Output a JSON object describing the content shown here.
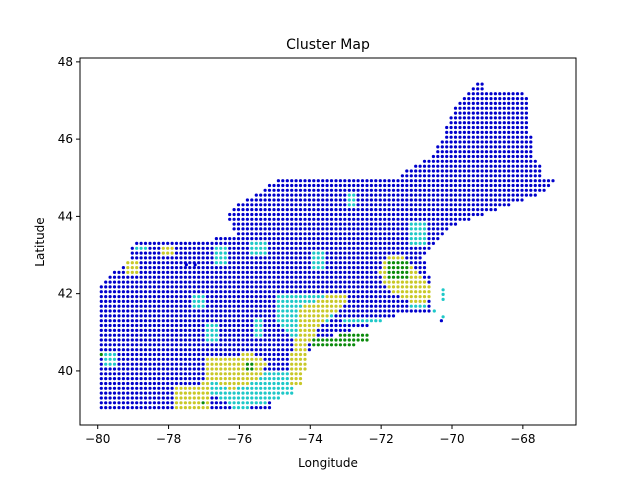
{
  "chart_data": {
    "type": "scatter",
    "title": "Cluster Map",
    "xlabel": "Longitude",
    "ylabel": "Latitude",
    "xlim": [
      -80.5,
      -66.5
    ],
    "ylim": [
      38.6,
      48.1
    ],
    "xticks": [
      -80,
      -78,
      -76,
      -74,
      -72,
      -70,
      -68
    ],
    "yticks": [
      40,
      42,
      44,
      46,
      48
    ],
    "xtick_labels": [
      "−80",
      "−78",
      "−76",
      "−74",
      "−72",
      "−70",
      "−68"
    ],
    "ytick_labels": [
      "40",
      "42",
      "44",
      "46",
      "48"
    ],
    "grid": false,
    "grid_step": 0.125,
    "colors": {
      "blue": "#0000cc",
      "cyan": "#1ec8c8",
      "yellow": "#c8c828",
      "green": "#0a8a0a"
    },
    "clusters": [
      {
        "color": "blue",
        "polygons": [
          [
            [
              -79.9,
              39.05
            ],
            [
              -75.6,
              39.05
            ],
            [
              -75.5,
              38.9
            ],
            [
              -75.1,
              38.9
            ],
            [
              -75.15,
              39.4
            ],
            [
              -74.7,
              39.45
            ],
            [
              -74.4,
              39.7
            ],
            [
              -74.15,
              40.1
            ],
            [
              -74.0,
              40.5
            ],
            [
              -73.9,
              40.8
            ],
            [
              -72.6,
              41.1
            ],
            [
              -71.9,
              41.3
            ],
            [
              -71.3,
              41.5
            ],
            [
              -71.0,
              41.45
            ],
            [
              -70.9,
              41.5
            ],
            [
              -70.6,
              41.55
            ],
            [
              -70.55,
              41.75
            ],
            [
              -70.55,
              42.2
            ],
            [
              -70.7,
              42.55
            ],
            [
              -70.8,
              42.9
            ],
            [
              -70.6,
              43.2
            ],
            [
              -70.25,
              43.5
            ],
            [
              -70.0,
              43.75
            ],
            [
              -69.5,
              43.9
            ],
            [
              -69.0,
              44.1
            ],
            [
              -68.6,
              44.2
            ],
            [
              -68.2,
              44.35
            ],
            [
              -67.8,
              44.5
            ],
            [
              -67.4,
              44.6
            ],
            [
              -67.2,
              44.8
            ],
            [
              -67.1,
              44.9
            ],
            [
              -67.4,
              45.05
            ],
            [
              -67.45,
              45.35
            ],
            [
              -67.7,
              45.6
            ],
            [
              -67.8,
              46.2
            ],
            [
              -67.8,
              47.05
            ],
            [
              -68.2,
              47.3
            ],
            [
              -68.7,
              47.2
            ],
            [
              -69.05,
              47.3
            ],
            [
              -69.2,
              47.6
            ],
            [
              -70.0,
              46.7
            ],
            [
              -70.3,
              45.95
            ],
            [
              -70.6,
              45.5
            ],
            [
              -71.1,
              45.3
            ],
            [
              -71.45,
              45.05
            ],
            [
              -72.6,
              45.05
            ],
            [
              -74.05,
              45.05
            ],
            [
              -74.8,
              45.0
            ],
            [
              -75.5,
              44.6
            ],
            [
              -76.1,
              44.3
            ],
            [
              -76.35,
              44.05
            ],
            [
              -76.1,
              43.55
            ],
            [
              -76.6,
              43.45
            ],
            [
              -77.2,
              43.3
            ],
            [
              -78.5,
              43.35
            ],
            [
              -79.0,
              43.3
            ],
            [
              -79.1,
              42.85
            ],
            [
              -79.75,
              42.45
            ],
            [
              -79.9,
              42.2
            ]
          ]
        ]
      },
      {
        "color": "cyan",
        "polygons": [
          [
            [
              -79.8,
              40.5
            ],
            [
              -79.5,
              40.5
            ],
            [
              -79.5,
              40.15
            ],
            [
              -79.8,
              40.15
            ]
          ],
          [
            [
              -78.9,
              43.3
            ],
            [
              -78.6,
              43.3
            ],
            [
              -78.6,
              43.1
            ],
            [
              -78.9,
              43.1
            ]
          ],
          [
            [
              -77.3,
              42.0
            ],
            [
              -76.95,
              42.0
            ],
            [
              -76.95,
              41.65
            ],
            [
              -77.3,
              41.65
            ]
          ],
          [
            [
              -76.7,
              43.3
            ],
            [
              -76.3,
              43.3
            ],
            [
              -76.3,
              42.8
            ],
            [
              -76.7,
              42.8
            ]
          ],
          [
            [
              -75.7,
              43.4
            ],
            [
              -75.2,
              43.4
            ],
            [
              -75.2,
              43.0
            ],
            [
              -75.7,
              43.0
            ]
          ],
          [
            [
              -74.0,
              43.1
            ],
            [
              -73.6,
              43.1
            ],
            [
              -73.6,
              42.6
            ],
            [
              -74.0,
              42.6
            ]
          ],
          [
            [
              -73.0,
              44.6
            ],
            [
              -72.7,
              44.6
            ],
            [
              -72.7,
              44.3
            ],
            [
              -73.0,
              44.3
            ]
          ],
          [
            [
              -71.2,
              43.9
            ],
            [
              -70.7,
              43.9
            ],
            [
              -70.7,
              43.25
            ],
            [
              -71.2,
              43.25
            ]
          ],
          [
            [
              -76.9,
              41.2
            ],
            [
              -76.6,
              41.2
            ],
            [
              -76.6,
              40.8
            ],
            [
              -76.9,
              40.8
            ]
          ],
          [
            [
              -75.6,
              41.4
            ],
            [
              -75.3,
              41.4
            ],
            [
              -75.3,
              40.9
            ],
            [
              -75.6,
              40.9
            ]
          ],
          [
            [
              -74.9,
              41.95
            ],
            [
              -73.4,
              41.95
            ],
            [
              -73.3,
              41.45
            ],
            [
              -73.8,
              41.1
            ],
            [
              -74.5,
              40.85
            ],
            [
              -74.9,
              41.3
            ]
          ],
          [
            [
              -76.8,
              40.05
            ],
            [
              -74.5,
              40.05
            ],
            [
              -74.5,
              39.4
            ],
            [
              -76.0,
              38.95
            ],
            [
              -76.8,
              39.4
            ]
          ],
          [
            [
              -71.2,
              42.1
            ],
            [
              -70.7,
              42.1
            ],
            [
              -70.7,
              41.6
            ],
            [
              -71.2,
              41.6
            ]
          ],
          [
            [
              -73.05,
              41.4
            ],
            [
              -71.9,
              41.4
            ],
            [
              -71.9,
              41.2
            ],
            [
              -73.05,
              41.2
            ]
          ]
        ]
      },
      {
        "color": "yellow",
        "polygons": [
          [
            [
              -79.2,
              42.85
            ],
            [
              -78.8,
              42.85
            ],
            [
              -78.8,
              42.5
            ],
            [
              -79.2,
              42.5
            ]
          ],
          [
            [
              -78.2,
              43.3
            ],
            [
              -77.85,
              43.3
            ],
            [
              -77.85,
              43.05
            ],
            [
              -78.2,
              43.05
            ]
          ],
          [
            [
              -71.9,
              42.9
            ],
            [
              -71.45,
              43.0
            ],
            [
              -71.05,
              42.6
            ],
            [
              -70.6,
              42.2
            ],
            [
              -70.55,
              41.85
            ],
            [
              -71.0,
              41.7
            ],
            [
              -71.4,
              41.9
            ],
            [
              -71.9,
              42.2
            ],
            [
              -72.05,
              42.55
            ]
          ],
          [
            [
              -74.4,
              41.6
            ],
            [
              -73.2,
              42.05
            ],
            [
              -72.85,
              41.85
            ],
            [
              -73.7,
              41.2
            ],
            [
              -74.1,
              40.6
            ],
            [
              -74.1,
              40.1
            ],
            [
              -74.3,
              39.6
            ],
            [
              -74.65,
              39.6
            ],
            [
              -74.6,
              40.3
            ],
            [
              -74.35,
              40.95
            ]
          ],
          [
            [
              -76.9,
              40.3
            ],
            [
              -75.7,
              40.45
            ],
            [
              -75.2,
              40.2
            ],
            [
              -75.4,
              39.8
            ],
            [
              -76.2,
              39.5
            ],
            [
              -76.9,
              39.8
            ]
          ],
          [
            [
              -77.8,
              39.6
            ],
            [
              -76.8,
              39.7
            ],
            [
              -76.8,
              39.05
            ],
            [
              -77.8,
              39.05
            ]
          ]
        ]
      },
      {
        "color": "green",
        "polygons": [
          [
            [
              -74.0,
              40.85
            ],
            [
              -72.3,
              41.0
            ],
            [
              -72.3,
              40.8
            ],
            [
              -73.0,
              40.6
            ],
            [
              -74.0,
              40.6
            ]
          ],
          [
            [
              -71.8,
              42.85
            ],
            [
              -71.2,
              42.85
            ],
            [
              -71.2,
              42.35
            ],
            [
              -71.8,
              42.35
            ]
          ],
          [
            [
              -79.9,
              40.55
            ],
            [
              -79.8,
              40.55
            ],
            [
              -79.8,
              40.35
            ],
            [
              -79.9,
              40.35
            ]
          ],
          [
            [
              -77.1,
              39.25
            ],
            [
              -76.95,
              39.25
            ],
            [
              -76.95,
              39.1
            ],
            [
              -77.1,
              39.1
            ]
          ],
          [
            [
              -75.8,
              40.2
            ],
            [
              -75.55,
              40.2
            ],
            [
              -75.55,
              40.0
            ],
            [
              -75.8,
              40.0
            ]
          ]
        ]
      }
    ],
    "scatter_islands": [
      {
        "color": "cyan",
        "points": [
          [
            -70.25,
            41.85
          ],
          [
            -70.25,
            41.98
          ],
          [
            -70.25,
            42.1
          ],
          [
            -70.5,
            41.55
          ],
          [
            -70.25,
            41.4
          ]
        ]
      },
      {
        "color": "blue",
        "points": [
          [
            -77.5,
            42.75
          ],
          [
            -77.25,
            42.75
          ],
          [
            -70.3,
            41.3
          ]
        ]
      }
    ]
  }
}
